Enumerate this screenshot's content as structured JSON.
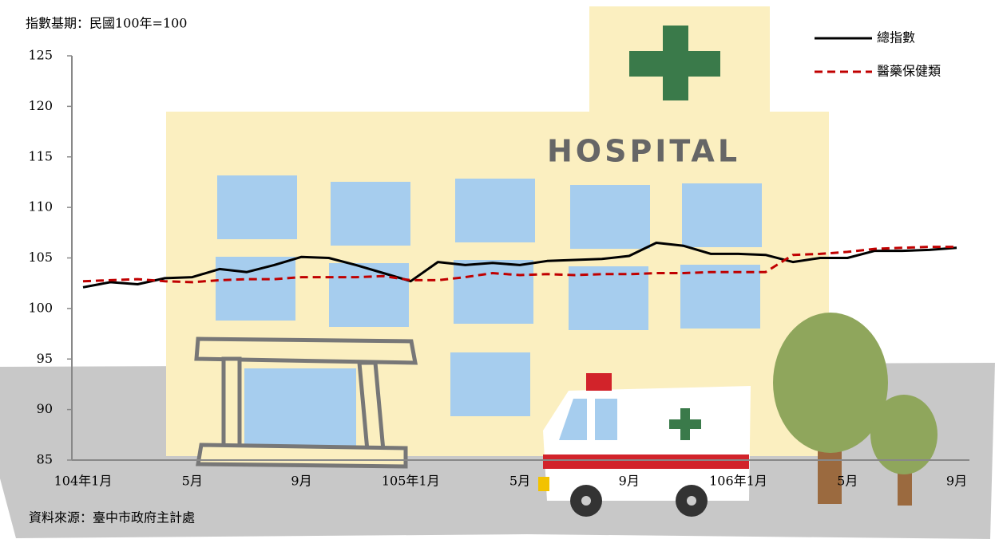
{
  "chart_data": {
    "type": "line",
    "title": "指數基期：民國100年=100",
    "source": "資料來源：臺中市政府主計處",
    "annotation": "HOSPITAL",
    "categories": [
      "104年1月",
      null,
      null,
      null,
      "5月",
      null,
      null,
      null,
      "9月",
      null,
      null,
      null,
      "105年1月",
      null,
      null,
      null,
      "5月",
      null,
      null,
      null,
      "9月",
      null,
      null,
      null,
      "106年1月",
      null,
      null,
      null,
      "5月",
      null,
      null,
      null,
      "9月"
    ],
    "series": [
      {
        "name": "總指數",
        "color": "#000000",
        "dash": false,
        "values": [
          102.1,
          102.6,
          102.4,
          103.0,
          103.1,
          103.9,
          103.6,
          104.3,
          105.1,
          105.0,
          104.3,
          103.5,
          102.7,
          104.6,
          104.3,
          104.5,
          104.3,
          104.7,
          104.8,
          104.9,
          105.2,
          106.5,
          106.2,
          105.4,
          105.4,
          105.3,
          104.6,
          105.0,
          105.0,
          105.7,
          105.7,
          105.8,
          106.0
        ]
      },
      {
        "name": "醫藥保健類",
        "color": "#c00000",
        "dash": true,
        "values": [
          102.7,
          102.8,
          102.9,
          102.7,
          102.6,
          102.8,
          102.9,
          102.9,
          103.1,
          103.1,
          103.1,
          103.2,
          102.8,
          102.8,
          103.1,
          103.5,
          103.3,
          103.4,
          103.3,
          103.4,
          103.4,
          103.5,
          103.5,
          103.6,
          103.6,
          103.6,
          105.3,
          105.4,
          105.6,
          105.9,
          106.0,
          106.1,
          106.1
        ]
      }
    ],
    "ylim": [
      85,
      125
    ],
    "yticks": [
      85,
      90,
      95,
      100,
      105,
      110,
      115,
      120,
      125
    ],
    "legend": "top-right",
    "grid": false
  }
}
